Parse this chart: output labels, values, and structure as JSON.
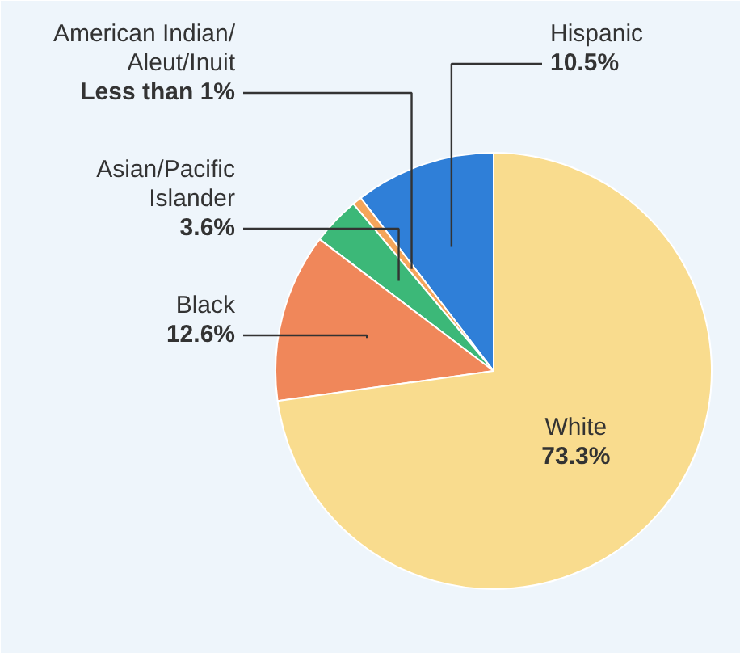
{
  "chart_data": {
    "type": "pie",
    "categories": [
      "Hispanic",
      "American Indian/\nAleut/Inuit",
      "Asian/Pacific\nIslander",
      "Black",
      "White"
    ],
    "values": [
      10.5,
      0.7,
      3.6,
      12.6,
      73.3
    ],
    "value_labels": [
      "10.5%",
      "Less than 1%",
      "3.6%",
      "12.6%",
      "73.3%"
    ],
    "colors": [
      "#2f7fd8",
      "#f5a55a",
      "#3cb878",
      "#f0875a",
      "#f9dc8e"
    ]
  }
}
